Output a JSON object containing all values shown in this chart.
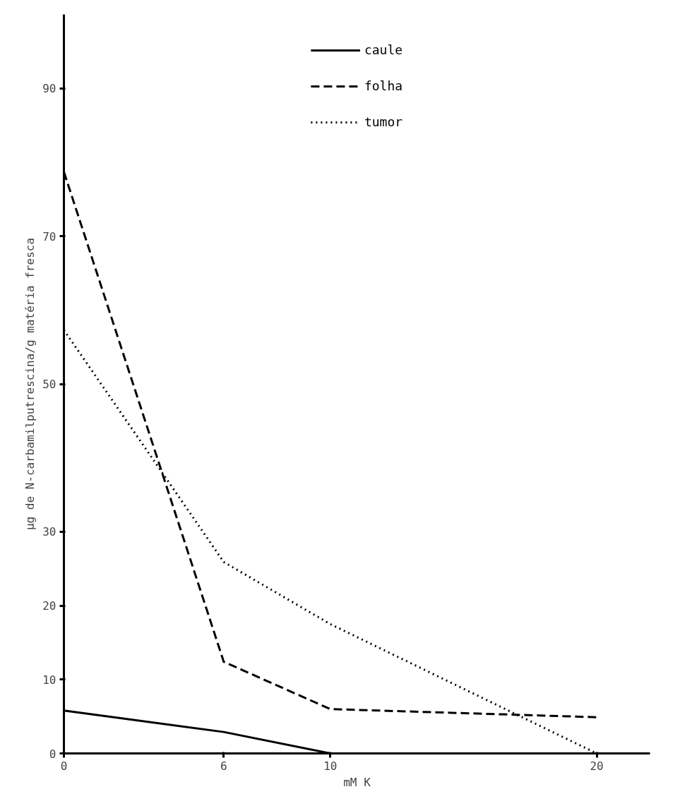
{
  "chart_data": {
    "type": "line",
    "xlabel": "mM K",
    "ylabel": "µg de N-carbamilputrescina/g matéria fresca",
    "x": [
      0,
      6,
      10,
      20
    ],
    "series": [
      {
        "name": "caule",
        "color": "#000000",
        "line_style": "solid",
        "values": [
          5.8,
          2.9,
          0,
          0
        ]
      },
      {
        "name": "folha",
        "color": "#000000",
        "line_style": "dashed",
        "values": [
          78.7,
          12.4,
          6,
          4.9
        ]
      },
      {
        "name": "tumor",
        "color": "#000000",
        "line_style": "dotted",
        "values": [
          57.3,
          25.9,
          17.5,
          0
        ]
      }
    ],
    "xlim": [
      0,
      22
    ],
    "xticks": [
      0,
      6,
      10,
      20
    ],
    "ylim": [
      0,
      100
    ],
    "yticks": [
      0,
      10,
      20,
      30,
      50,
      70,
      90
    ],
    "grid": false,
    "legend": "top",
    "marker": "none"
  }
}
